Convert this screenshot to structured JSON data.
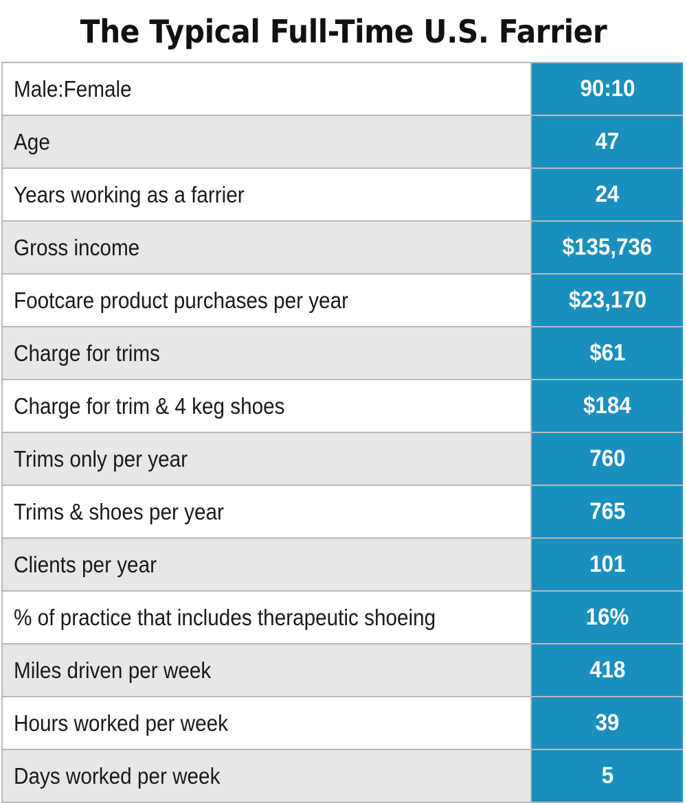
{
  "title": "The Typical Full-Time U.S. Farrier",
  "colors": {
    "value_column": "#1a8fbd",
    "row_shaded": "#e7e7e8",
    "row_plain": "#ffffff",
    "rule": "#b9b9b9"
  },
  "rows": [
    {
      "label": "Male:Female",
      "value": "90:10"
    },
    {
      "label": "Age",
      "value": "47"
    },
    {
      "label": "Years working as a farrier",
      "value": "24"
    },
    {
      "label": "Gross income",
      "value": "$135,736"
    },
    {
      "label": "Footcare product purchases per year",
      "value": "$23,170"
    },
    {
      "label": "Charge for trims",
      "value": "$61"
    },
    {
      "label": "Charge for trim & 4 keg shoes",
      "value": "$184"
    },
    {
      "label": "Trims only per year",
      "value": "760"
    },
    {
      "label": "Trims & shoes per year",
      "value": "765"
    },
    {
      "label": "Clients per year",
      "value": "101"
    },
    {
      "label": "% of practice that includes therapeutic shoeing",
      "value": "16%"
    },
    {
      "label": "Miles driven per week",
      "value": "418"
    },
    {
      "label": "Hours worked per week",
      "value": "39"
    },
    {
      "label": "Days worked per week",
      "value": "5"
    }
  ]
}
